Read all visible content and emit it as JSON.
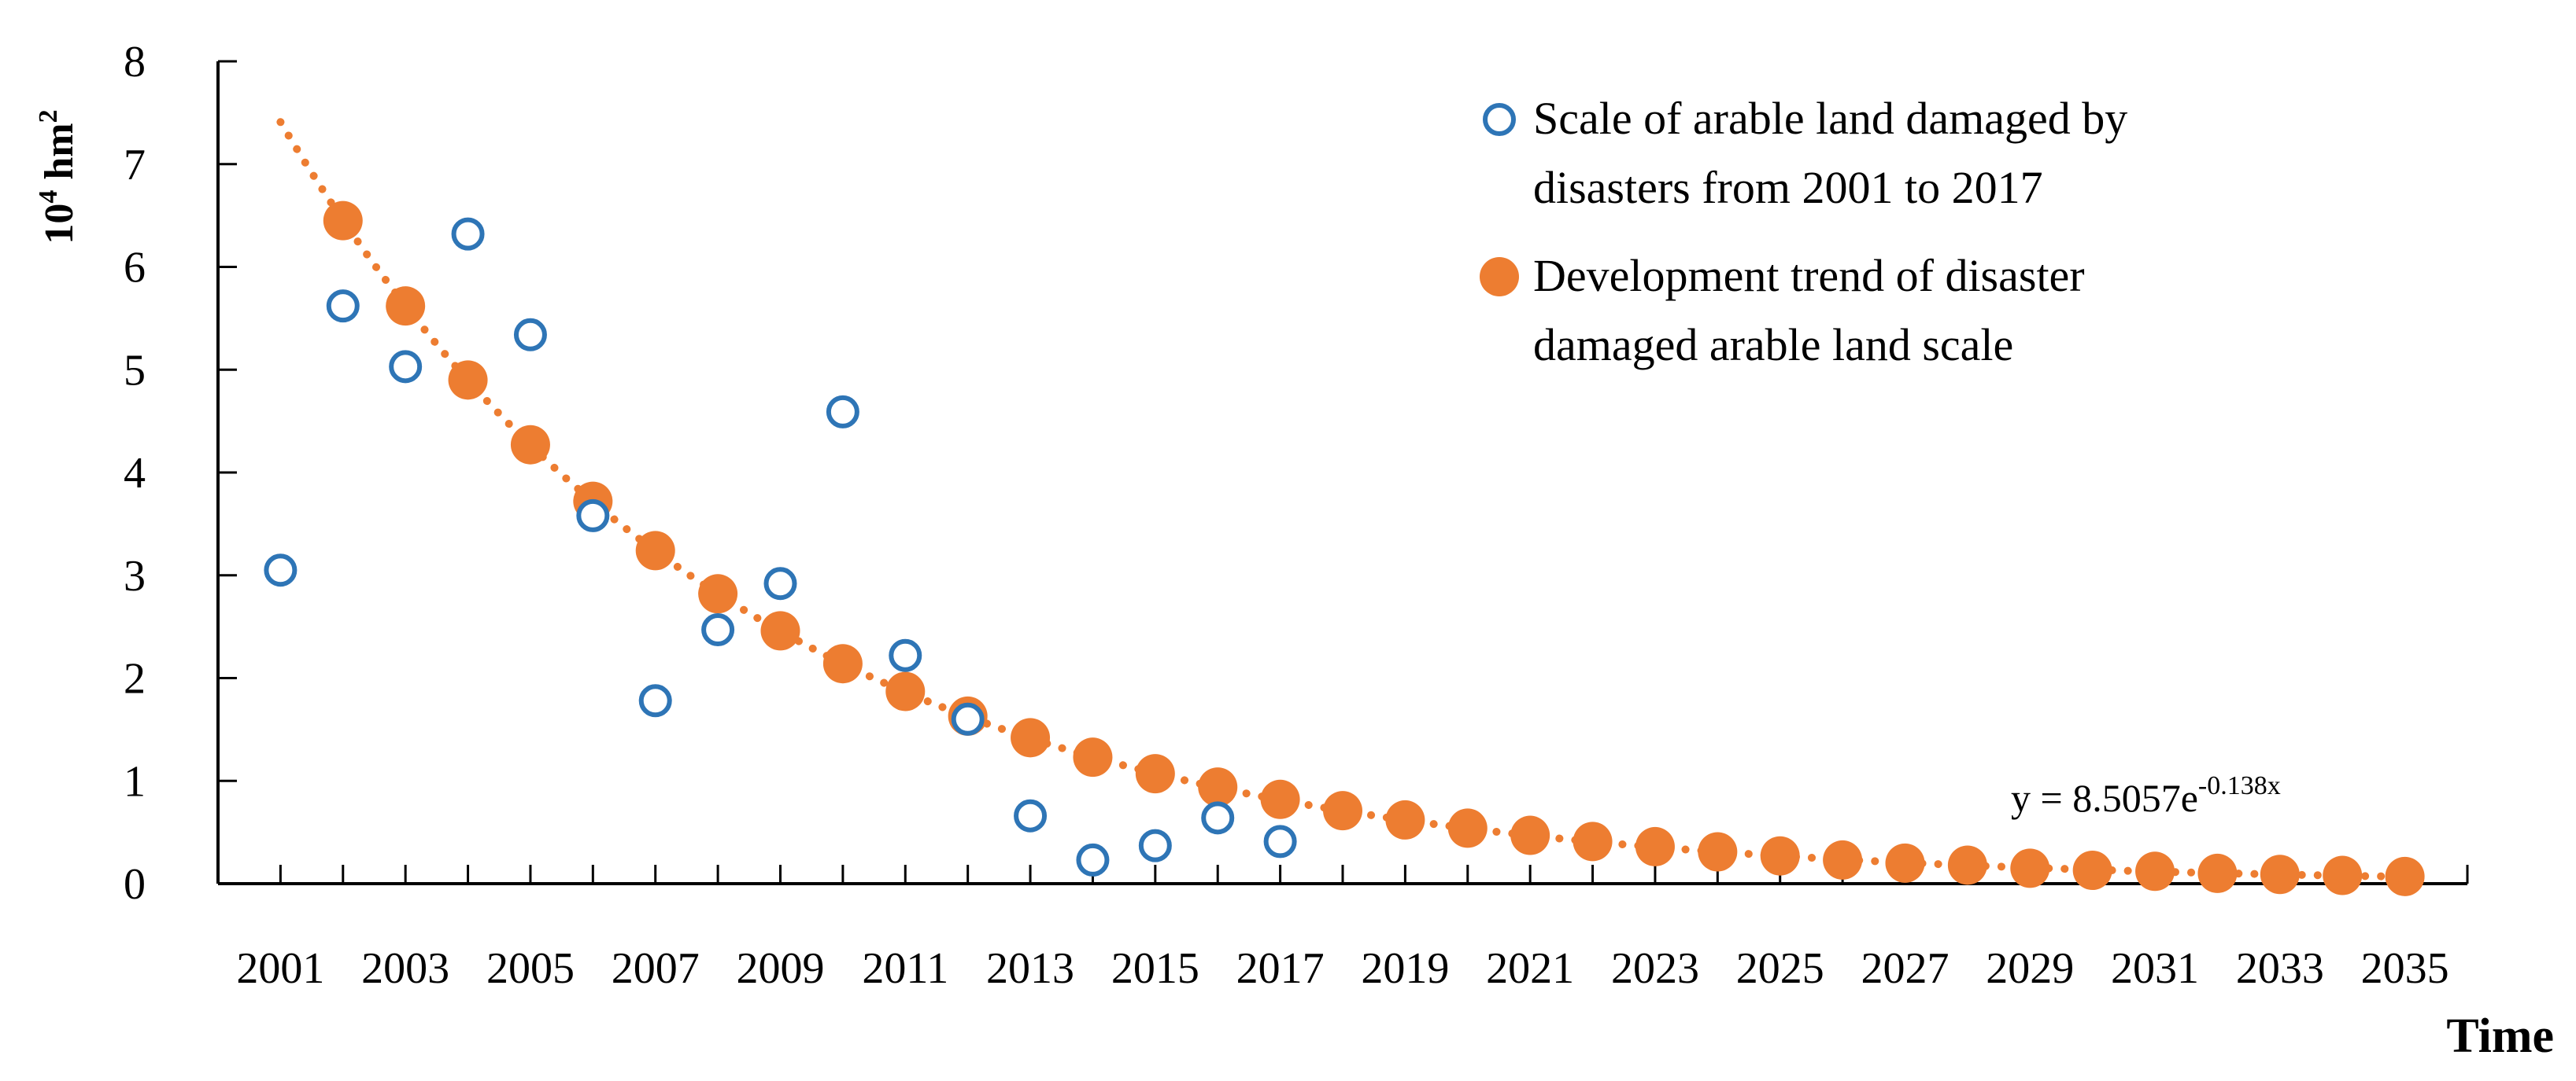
{
  "chart_data": {
    "type": "scatter",
    "title": "",
    "ylabel_base": "10",
    "ylabel_exp": "4",
    "ylabel_unit": " hm",
    "ylabel_unit_exp": "2",
    "xlabel": "Time",
    "xlim": [
      2001,
      2035
    ],
    "ylim": [
      0,
      8
    ],
    "x_ticks": [
      2001,
      2003,
      2005,
      2007,
      2009,
      2011,
      2013,
      2015,
      2017,
      2019,
      2021,
      2023,
      2025,
      2027,
      2029,
      2031,
      2033,
      2035
    ],
    "y_ticks": [
      0,
      1,
      2,
      3,
      4,
      5,
      6,
      7,
      8
    ],
    "legend_position": "top-right",
    "series": [
      {
        "name": "Scale of arable land damaged by disasters from 2001 to 2017",
        "legend_lines": [
          "Scale of arable land damaged by",
          "disasters from 2001 to 2017"
        ],
        "marker": "open-circle",
        "color": "#2e75b6",
        "x": [
          2001,
          2002,
          2003,
          2004,
          2005,
          2006,
          2007,
          2008,
          2009,
          2010,
          2011,
          2012,
          2013,
          2014,
          2015,
          2016,
          2017
        ],
        "y": [
          3.05,
          5.62,
          5.03,
          6.32,
          5.34,
          3.58,
          1.78,
          2.47,
          2.92,
          4.59,
          2.22,
          1.6,
          0.66,
          0.23,
          0.37,
          0.64,
          0.41
        ]
      },
      {
        "name": "Development trend of disaster damaged arable land scale",
        "legend_lines": [
          "Development trend of disaster",
          "damaged arable land scale"
        ],
        "marker": "filled-circle",
        "color": "#ed7d31",
        "x": [
          2002,
          2003,
          2004,
          2005,
          2006,
          2007,
          2008,
          2009,
          2010,
          2011,
          2012,
          2013,
          2014,
          2015,
          2016,
          2017,
          2018,
          2019,
          2020,
          2021,
          2022,
          2023,
          2024,
          2025,
          2026,
          2027,
          2028,
          2029,
          2030,
          2031,
          2032,
          2033,
          2034,
          2035
        ],
        "y": [
          6.45,
          5.62,
          4.9,
          4.27,
          3.72,
          3.24,
          2.82,
          2.46,
          2.14,
          1.87,
          1.63,
          1.42,
          1.23,
          1.07,
          0.94,
          0.82,
          0.71,
          0.62,
          0.54,
          0.47,
          0.41,
          0.36,
          0.31,
          0.27,
          0.23,
          0.2,
          0.18,
          0.15,
          0.13,
          0.12,
          0.1,
          0.09,
          0.08,
          0.07
        ]
      }
    ],
    "trendline": {
      "type": "exponential",
      "a": 8.5057,
      "b": -0.138,
      "x_offset": 2000,
      "color": "#ed7d31",
      "style": "dotted",
      "equation_base": "y = 8.5057e",
      "equation_exp": "-0.138x"
    }
  }
}
